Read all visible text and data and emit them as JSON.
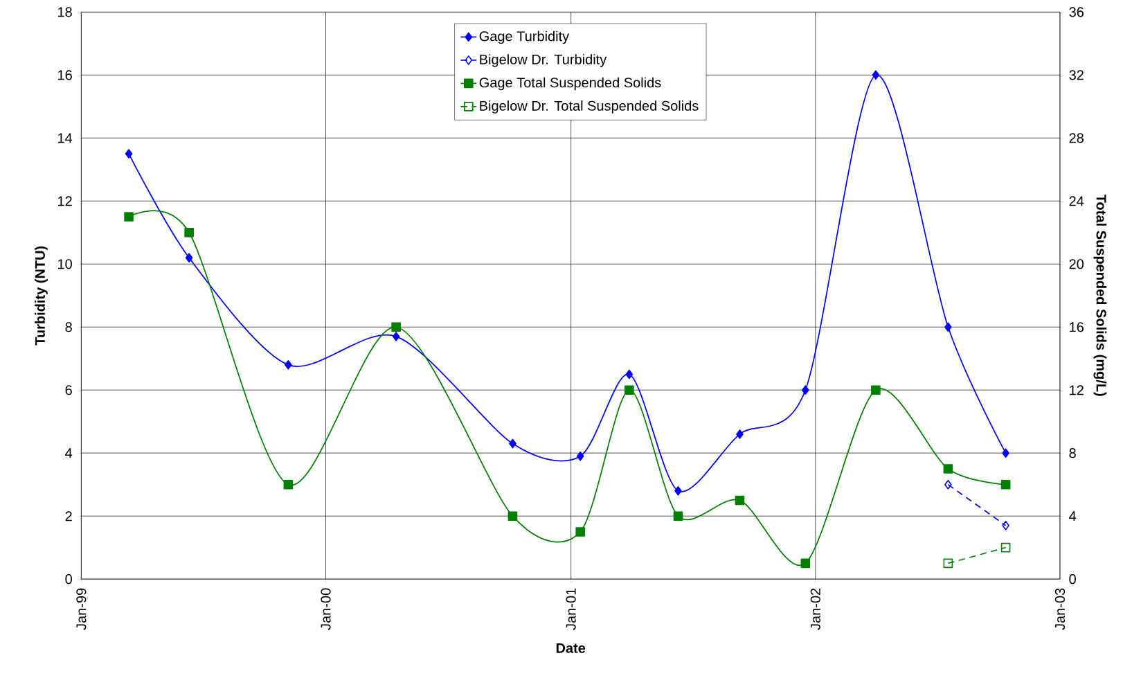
{
  "chart_data": {
    "type": "line",
    "xlabel": "Date",
    "ylabel": "Turbidity (NTU)",
    "y2label": "Total Suspended Solids (mg/L)",
    "xlim": [
      "1999-01-01",
      "2003-01-01"
    ],
    "xticks": [
      {
        "value": "1999-01-01",
        "label": "Jan-99"
      },
      {
        "value": "2000-01-01",
        "label": "Jan-00"
      },
      {
        "value": "2001-01-01",
        "label": "Jan-01"
      },
      {
        "value": "2002-01-01",
        "label": "Jan-02"
      },
      {
        "value": "2003-01-01",
        "label": "Jan-03"
      }
    ],
    "ylim": [
      0,
      18
    ],
    "yticks": [
      0,
      2,
      4,
      6,
      8,
      10,
      12,
      14,
      16,
      18
    ],
    "y2lim": [
      0,
      36
    ],
    "y2ticks": [
      0,
      4,
      8,
      12,
      16,
      20,
      24,
      28,
      32,
      36
    ],
    "grid": true,
    "legend": "top",
    "series": [
      {
        "name": "Gage Turbidity",
        "color": "#0000ff",
        "marker": "diamond",
        "line_style": "solid",
        "axis": "y",
        "x": [
          "1999-03-13",
          "1999-06-11",
          "1999-11-06",
          "2000-04-15",
          "2000-10-06",
          "2001-01-15",
          "2001-03-29",
          "2001-06-10",
          "2001-09-10",
          "2001-12-17",
          "2002-04-01",
          "2002-07-18",
          "2002-10-12"
        ],
        "values": [
          13.5,
          10.2,
          6.8,
          7.7,
          4.3,
          3.9,
          6.5,
          2.8,
          4.6,
          6.0,
          16.0,
          8.0,
          4.0
        ]
      },
      {
        "name": "Bigelow Dr. Turbidity",
        "color": "#0000ff",
        "marker": "diamond",
        "line_style": "dashed",
        "axis": "y",
        "x": [
          "2002-07-18",
          "2002-10-12"
        ],
        "values": [
          3.0,
          1.7
        ]
      },
      {
        "name": "Gage Total Suspended Solids",
        "color": "#008000",
        "marker": "square",
        "line_style": "solid",
        "axis": "y2",
        "x": [
          "1999-03-13",
          "1999-06-11",
          "1999-11-06",
          "2000-04-15",
          "2000-10-06",
          "2001-01-15",
          "2001-03-29",
          "2001-06-10",
          "2001-09-10",
          "2001-12-17",
          "2002-04-01",
          "2002-07-18",
          "2002-10-12"
        ],
        "values": [
          23,
          22,
          6,
          16,
          4,
          3,
          12,
          4,
          5,
          1,
          12,
          7,
          6
        ]
      },
      {
        "name": "Bigelow Dr. Total Suspended Solids",
        "color": "#008000",
        "marker": "square",
        "line_style": "dashed",
        "axis": "y2",
        "x": [
          "2002-07-18",
          "2002-10-12"
        ],
        "values": [
          1,
          2
        ]
      }
    ]
  }
}
